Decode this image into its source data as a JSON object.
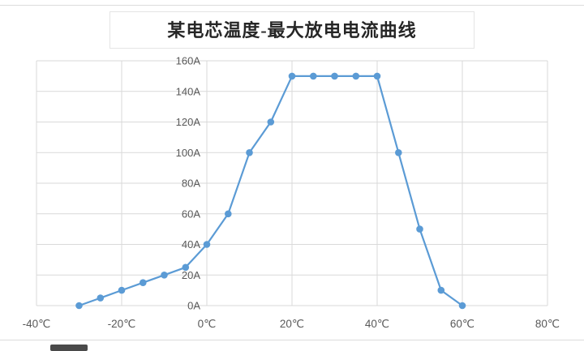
{
  "chart_data": {
    "type": "line",
    "title": "某电芯温度-最大放电电流曲线",
    "x": [
      -30,
      -25,
      -20,
      -15,
      -10,
      -5,
      0,
      5,
      10,
      15,
      20,
      25,
      30,
      35,
      40,
      45,
      50,
      55,
      60
    ],
    "y": [
      0,
      5,
      10,
      15,
      20,
      25,
      40,
      60,
      100,
      120,
      150,
      150,
      150,
      150,
      150,
      100,
      50,
      10,
      0
    ],
    "xlim": [
      -40,
      80
    ],
    "ylim": [
      0,
      160
    ],
    "x_tick_values": [
      -40,
      -20,
      0,
      20,
      40,
      60,
      80
    ],
    "x_tick_labels": [
      "-40℃",
      "-20℃",
      "0℃",
      "20℃",
      "40℃",
      "60℃",
      "80℃"
    ],
    "y_tick_values": [
      0,
      20,
      40,
      60,
      80,
      100,
      120,
      140,
      160
    ],
    "y_tick_labels": [
      "0A",
      "20A",
      "40A",
      "60A",
      "80A",
      "100A",
      "120A",
      "140A",
      "160A"
    ],
    "grid": true,
    "legend": false,
    "y_axis_cross_x": 0,
    "line_color": "#5B9BD5",
    "marker_color": "#5B9BD5",
    "grid_color": "#D9D9D9",
    "tick_color": "#595959"
  }
}
